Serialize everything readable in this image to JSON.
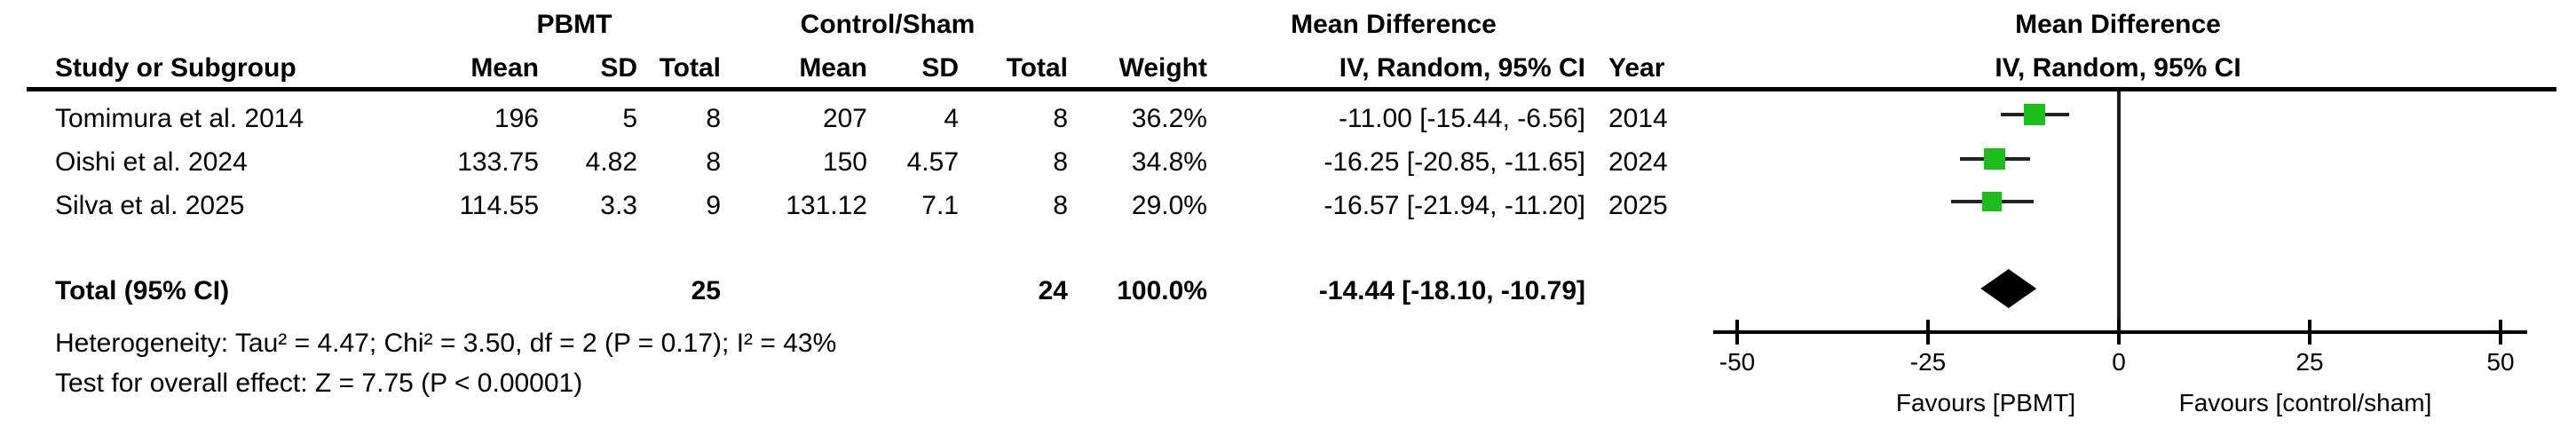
{
  "table": {
    "group_headers": {
      "pbmt": "PBMT",
      "control": "Control/Sham",
      "mean_difference": "Mean Difference"
    },
    "column_headers": {
      "study": "Study or Subgroup",
      "mean": "Mean",
      "sd": "SD",
      "total": "Total",
      "weight": "Weight",
      "iv_random": "IV, Random, 95% CI",
      "year": "Year"
    },
    "rows": [
      {
        "study": "Tomimura et al. 2014",
        "pbmt_mean": "196",
        "pbmt_sd": "5",
        "pbmt_total": "8",
        "ctrl_mean": "207",
        "ctrl_sd": "4",
        "ctrl_total": "8",
        "weight": "36.2%",
        "ci": "-11.00 [-15.44, -6.56]",
        "year": "2014"
      },
      {
        "study": "Oishi et al. 2024",
        "pbmt_mean": "133.75",
        "pbmt_sd": "4.82",
        "pbmt_total": "8",
        "ctrl_mean": "150",
        "ctrl_sd": "4.57",
        "ctrl_total": "8",
        "weight": "34.8%",
        "ci": "-16.25 [-20.85, -11.65]",
        "year": "2024"
      },
      {
        "study": "Silva et al. 2025",
        "pbmt_mean": "114.55",
        "pbmt_sd": "3.3",
        "pbmt_total": "9",
        "ctrl_mean": "131.12",
        "ctrl_sd": "7.1",
        "ctrl_total": "8",
        "weight": "29.0%",
        "ci": "-16.57 [-21.94, -11.20]",
        "year": "2025"
      }
    ],
    "total_row": {
      "label": "Total (95% CI)",
      "pbmt_total": "25",
      "ctrl_total": "24",
      "weight": "100.0%",
      "ci": "-14.44 [-18.10, -10.79]"
    },
    "heterogeneity": "Heterogeneity: Tau² = 4.47; Chi² = 3.50, df = 2 (P = 0.17); I² = 43%",
    "overall_effect": "Test for overall effect: Z = 7.75 (P < 0.00001)"
  },
  "plot": {
    "header_line1": "Mean Difference",
    "header_line2": "IV, Random, 95% CI",
    "favours_left": "Favours [PBMT]",
    "favours_right": "Favours [control/sham]",
    "marker_color": "#1CBE1C",
    "line_color": "#222222",
    "diamond_color": "#000000"
  },
  "chart_data": {
    "type": "forest",
    "effect_measure": "Mean Difference",
    "model": "IV, Random, 95% CI",
    "studies": [
      {
        "name": "Tomimura et al. 2014",
        "pbmt": {
          "mean": 196,
          "sd": 5,
          "total": 8
        },
        "control": {
          "mean": 207,
          "sd": 4,
          "total": 8
        },
        "md": -11.0,
        "ci_low": -15.44,
        "ci_high": -6.56,
        "weight_pct": 36.2,
        "year": 2014
      },
      {
        "name": "Oishi et al. 2024",
        "pbmt": {
          "mean": 133.75,
          "sd": 4.82,
          "total": 8
        },
        "control": {
          "mean": 150,
          "sd": 4.57,
          "total": 8
        },
        "md": -16.25,
        "ci_low": -20.85,
        "ci_high": -11.65,
        "weight_pct": 34.8,
        "year": 2024
      },
      {
        "name": "Silva et al. 2025",
        "pbmt": {
          "mean": 114.55,
          "sd": 3.3,
          "total": 9
        },
        "control": {
          "mean": 131.12,
          "sd": 7.1,
          "total": 8
        },
        "md": -16.57,
        "ci_low": -21.94,
        "ci_high": -11.2,
        "weight_pct": 29.0,
        "year": 2025
      }
    ],
    "total": {
      "md": -14.44,
      "ci_low": -18.1,
      "ci_high": -10.79,
      "weight_pct": 100.0,
      "pbmt_total": 25,
      "control_total": 24
    },
    "heterogeneity": {
      "tau2": 4.47,
      "chi2": 3.5,
      "df": 2,
      "p": 0.17,
      "i2_pct": 43
    },
    "overall_effect": {
      "z": 7.75,
      "p": "< 0.00001"
    },
    "axis": {
      "ticks": [
        -50,
        -25,
        0,
        25,
        50
      ],
      "xlim": [
        -53,
        53
      ],
      "label_left": "Favours [PBMT]",
      "label_right": "Favours [control/sham]"
    }
  }
}
